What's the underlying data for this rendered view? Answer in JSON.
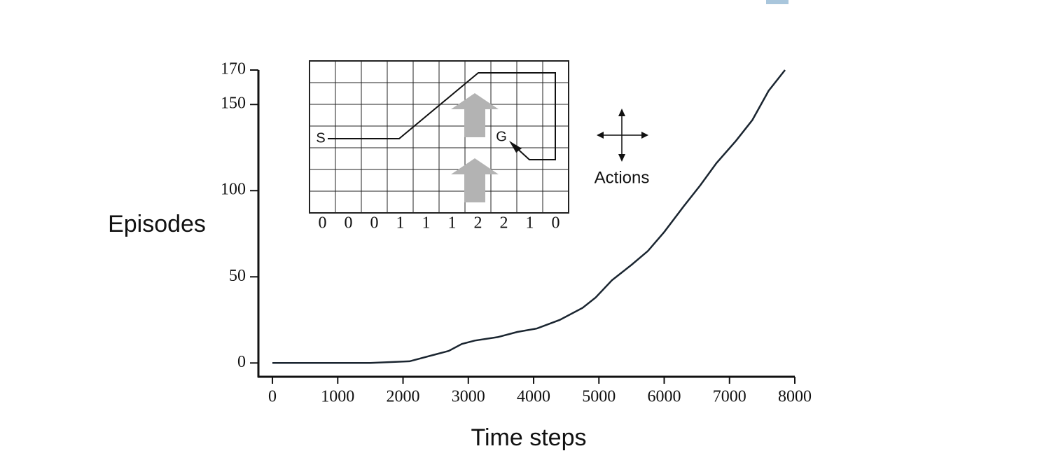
{
  "chart_data": {
    "type": "line",
    "x_label": "Time steps",
    "y_label": "Episodes",
    "x": [
      0,
      1500,
      2100,
      2500,
      2700,
      2900,
      3100,
      3450,
      3750,
      4050,
      4400,
      4750,
      4950,
      5200,
      5500,
      5750,
      6000,
      6300,
      6550,
      6800,
      7100,
      7350,
      7600,
      7850
    ],
    "values": [
      0,
      0,
      1,
      5,
      7,
      11,
      13,
      15,
      18,
      20,
      25,
      32,
      38,
      48,
      57,
      65,
      76,
      91,
      103,
      116,
      129,
      141,
      158,
      170
    ],
    "color": "#1a2530",
    "xlim": [
      -215,
      8000
    ],
    "xticks": [
      0,
      1000,
      2000,
      3000,
      4000,
      5000,
      6000,
      7000,
      8000
    ],
    "ylim": [
      -8,
      170
    ],
    "yticks": [
      0,
      50,
      100,
      150,
      170
    ],
    "inset": {
      "wind": [
        0,
        0,
        0,
        1,
        1,
        1,
        2,
        2,
        1,
        0
      ],
      "start_label": "S",
      "goal_label": "G",
      "actions_label": "Actions"
    }
  }
}
